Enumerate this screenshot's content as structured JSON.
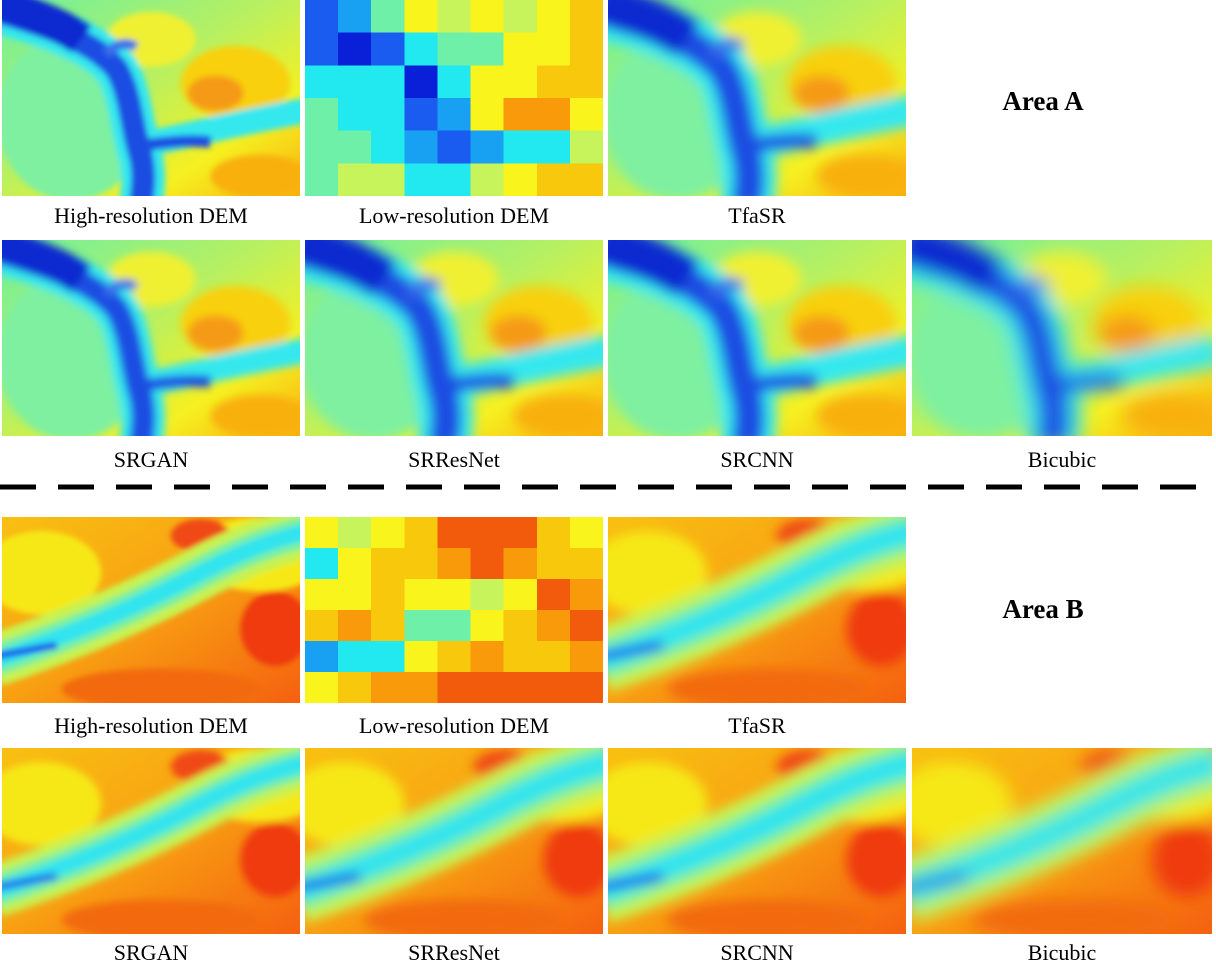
{
  "figure": {
    "area_a": {
      "title": "Area A",
      "row1": [
        "High-resolution DEM",
        "Low-resolution DEM",
        "TfaSR"
      ],
      "row2": [
        "SRGAN",
        "SRResNet",
        "SRCNN",
        "Bicubic"
      ]
    },
    "area_b": {
      "title": "Area B",
      "row1": [
        "High-resolution DEM",
        "Low-resolution DEM",
        "TfaSR"
      ],
      "row2": [
        "SRGAN",
        "SRResNet",
        "SRCNN",
        "Bicubic"
      ]
    },
    "colors": {
      "deep_blue": "#1c3fd6",
      "cyan": "#25e6f0",
      "green": "#8cee7a",
      "yellow": "#f8f51e",
      "orange": "#f8b00a",
      "red": "#f03a10"
    }
  }
}
